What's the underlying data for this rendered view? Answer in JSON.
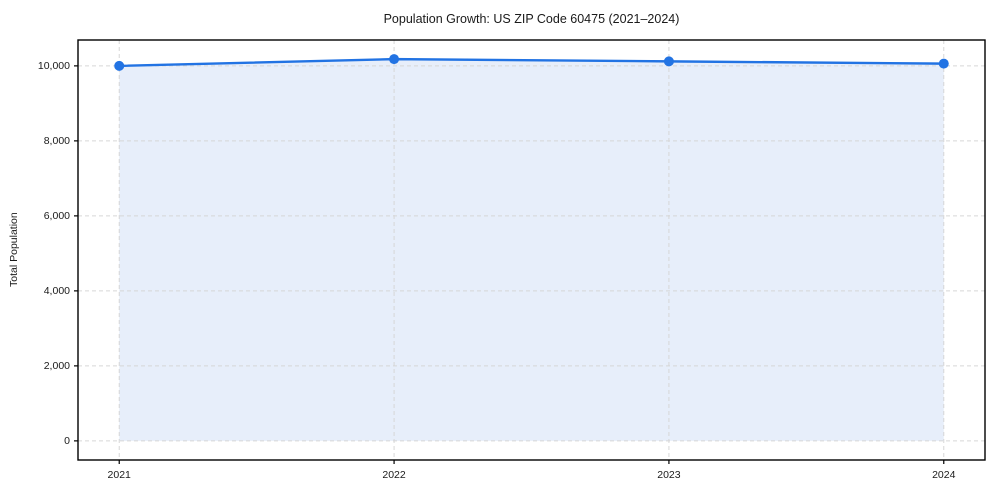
{
  "chart_data": {
    "type": "area",
    "title": "Population Growth: US ZIP Code 60475 (2021–2024)",
    "xlabel": "",
    "ylabel": "Total Population",
    "x": [
      2021,
      2022,
      2023,
      2024
    ],
    "x_tick_labels": [
      "2021",
      "2022",
      "2023",
      "2024"
    ],
    "series": [
      {
        "name": "Total Population",
        "values": [
          10000,
          10180,
          10120,
          10060
        ]
      }
    ],
    "y_ticks": [
      0,
      2000,
      4000,
      6000,
      8000,
      10000
    ],
    "y_tick_labels": [
      "0",
      "2,000",
      "4,000",
      "6,000",
      "8,000",
      "10,000"
    ],
    "xlim": [
      2020.85,
      2024.15
    ],
    "ylim": [
      -510,
      10690
    ],
    "fill_to": 0,
    "grid": true,
    "grid_style": "dashed",
    "legend": false,
    "marker": "circle",
    "colors": {
      "line": "#2273e3",
      "fill": "#e7eefa",
      "grid": "#d6d6d6",
      "spine": "#000000",
      "text": "#1a1a1a"
    }
  }
}
